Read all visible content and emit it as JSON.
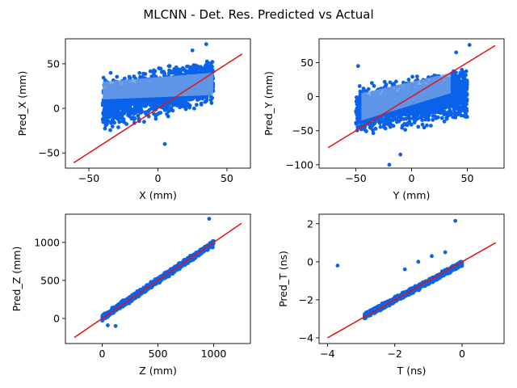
{
  "figure": {
    "title": "MLCNN - Det. Res. Predicted vs Actual"
  },
  "colors": {
    "points": "#0a62ea",
    "fit_band": "#6f9fe6",
    "identity": "#e01414",
    "spine": "#000000"
  },
  "chart_data": [
    {
      "type": "scatter",
      "id": "x",
      "xlabel": "X (mm)",
      "ylabel": "Pred_X (mm)",
      "xlim": [
        -67,
        67
      ],
      "ylim": [
        -67,
        78
      ],
      "xticks": [
        -50,
        0,
        50
      ],
      "yticks": [
        -50,
        0,
        50
      ],
      "identity": [
        [
          -61,
          -61
        ],
        [
          61,
          61
        ]
      ],
      "cloud": {
        "x": [
          -40,
          40
        ],
        "y_lo": [
          -30,
          0
        ],
        "y_hi": [
          40,
          60
        ],
        "n": 1800,
        "seed": 11,
        "outliers": [
          [
            -38,
            -12
          ],
          [
            35,
            72
          ],
          [
            5,
            -40
          ],
          [
            25,
            65
          ],
          [
            -10,
            -15
          ]
        ]
      },
      "band": [
        [
          -40,
          10
        ],
        [
          40,
          15
        ],
        [
          40,
          40
        ],
        [
          -40,
          30
        ]
      ]
    },
    {
      "type": "scatter",
      "id": "y",
      "xlabel": "Y (mm)",
      "ylabel": "Pred_Y (mm)",
      "xlim": [
        -83,
        83
      ],
      "ylim": [
        -105,
        85
      ],
      "xticks": [
        -50,
        0,
        50
      ],
      "yticks": [
        -100,
        -50,
        0,
        50
      ],
      "identity": [
        [
          -75,
          -75
        ],
        [
          75,
          75
        ]
      ],
      "cloud": {
        "x": [
          -50,
          50
        ],
        "y_lo": [
          -60,
          -40
        ],
        "y_hi": [
          20,
          50
        ],
        "n": 2000,
        "seed": 23,
        "outliers": [
          [
            -48,
            45
          ],
          [
            52,
            76
          ],
          [
            -20,
            -100
          ],
          [
            -10,
            -85
          ],
          [
            40,
            65
          ]
        ]
      },
      "band": [
        [
          -45,
          -35
        ],
        [
          35,
          5
        ],
        [
          35,
          35
        ],
        [
          -45,
          5
        ]
      ]
    },
    {
      "type": "scatter",
      "id": "z",
      "xlabel": "Z (mm)",
      "ylabel": "Pred_Z (mm)",
      "xlim": [
        -330,
        1330
      ],
      "ylim": [
        -330,
        1370
      ],
      "xticks": [
        0,
        500,
        1000
      ],
      "yticks": [
        0,
        500,
        1000
      ],
      "identity": [
        [
          -250,
          -250
        ],
        [
          1250,
          1250
        ]
      ],
      "line_cloud": {
        "x": [
          0,
          1000
        ],
        "slope": 0.98,
        "intercept": 10,
        "spread": 55,
        "n": 1500,
        "seed": 37,
        "outliers": [
          [
            960,
            1310
          ],
          [
            50,
            -90
          ],
          [
            120,
            -100
          ]
        ]
      }
    },
    {
      "type": "scatter",
      "id": "t",
      "xlabel": "T (ns)",
      "ylabel": "Pred_T (ns)",
      "xlim": [
        -4.25,
        1.25
      ],
      "ylim": [
        -4.3,
        2.5
      ],
      "xticks": [
        -4,
        -2,
        0
      ],
      "yticks": [
        -4,
        -2,
        0,
        2
      ],
      "identity": [
        [
          -4,
          -4
        ],
        [
          1,
          1
        ]
      ],
      "line_cloud": {
        "x": [
          -2.9,
          0
        ],
        "slope": 0.95,
        "intercept": -0.1,
        "spread": 0.2,
        "n": 1500,
        "seed": 41,
        "outliers": [
          [
            -3.7,
            -0.2
          ],
          [
            -0.2,
            2.15
          ],
          [
            -0.5,
            0.5
          ],
          [
            -0.9,
            0.3
          ],
          [
            -1.3,
            0.0
          ],
          [
            -1.7,
            -0.4
          ]
        ]
      }
    }
  ]
}
